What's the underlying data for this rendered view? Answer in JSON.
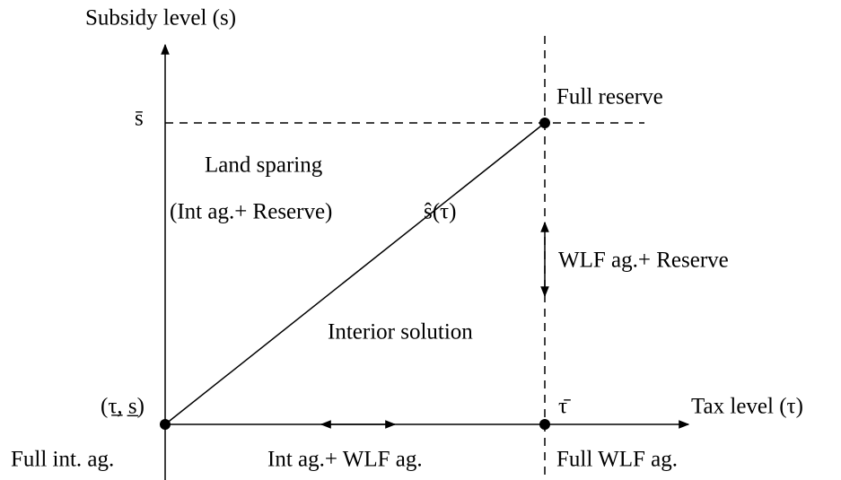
{
  "axes": {
    "y_label": "Subsidy level (s)",
    "x_label": "Tax level (τ)"
  },
  "points": {
    "s_bar": "s̄",
    "tau_bar": "τ̄",
    "origin": "(τ̲, s̲)",
    "curve": "ŝ(τ)"
  },
  "regions": {
    "full_reserve": "Full reserve",
    "land_sparing": "Land sparing",
    "int_reserve": "(Int ag.+ Reserve)",
    "wlf_reserve": "WLF ag.+ Reserve",
    "interior": "Interior solution",
    "full_int": "Full int. ag.",
    "int_wlf": "Int ag.+ WLF ag.",
    "full_wlf": "Full WLF ag."
  }
}
